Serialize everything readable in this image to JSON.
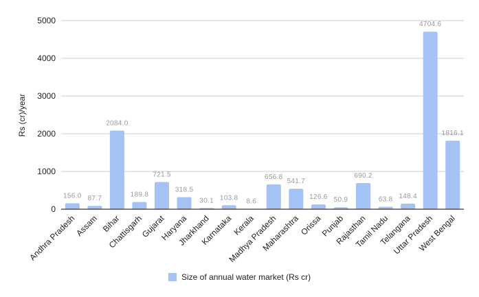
{
  "chart_data": {
    "type": "bar",
    "title": "",
    "xlabel": "",
    "ylabel": "Rs (cr)/year",
    "ylim": [
      0,
      5000
    ],
    "yticks": [
      0,
      1000,
      2000,
      3000,
      4000,
      5000
    ],
    "grid": true,
    "legend_position": "bottom",
    "categories": [
      "Andhra Pradesh",
      "Assam",
      "Bihar",
      "Chattisgarh",
      "Gujarat",
      "Haryana",
      "Jharkhand",
      "Karnataka",
      "Kerala",
      "Madhya Pradesh",
      "Maharashtra",
      "Orissa",
      "Punjab",
      "Rajasthan",
      "Tamil Nadu",
      "Telangana",
      "Uttar Pradesh",
      "West Bengal"
    ],
    "series": [
      {
        "name": "Size of annual water market (Rs cr)",
        "color": "#a4c2f4",
        "values": [
          156.0,
          87.7,
          2084.0,
          189.8,
          721.5,
          318.5,
          30.1,
          103.8,
          8.6,
          656.8,
          541.7,
          126.6,
          50.9,
          690.2,
          63.8,
          148.4,
          4704.6,
          1816.1
        ],
        "labels": [
          "156.0",
          "87.7",
          "2084.0",
          "189.8",
          "721.5",
          "318.5",
          "30.1",
          "103.8",
          "8.6",
          "656.8",
          "541.7",
          "126.6",
          "50.9",
          "690.2",
          "63.8",
          "148.4",
          "4704.6",
          "1816.1"
        ]
      }
    ]
  }
}
